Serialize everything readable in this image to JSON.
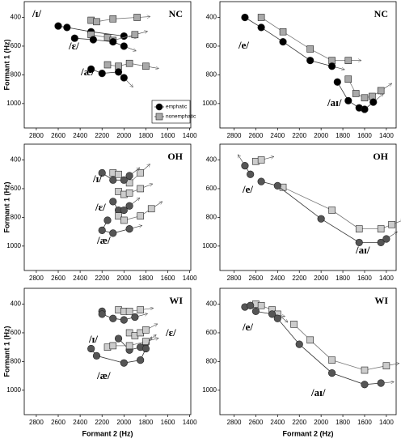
{
  "chart_data": [
    {
      "type": "trajectory",
      "title": "NC",
      "y_label": "Formant 1 (Hz)",
      "xlim": [
        2910,
        1390
      ],
      "ylim": [
        290,
        1170
      ],
      "xticks": [
        2800,
        2600,
        2400,
        2200,
        2000,
        1800,
        1600,
        1400
      ],
      "yticks": [
        400,
        600,
        800,
        1000
      ],
      "colors": {
        "emphatic": "#000000",
        "nonemphatic": "#a9a9a9"
      },
      "legend": [
        "emphatic",
        "nonemphatic"
      ],
      "trajectories": [
        {
          "label": "/ɪ/",
          "emphatic_x": [
            2600,
            2520,
            2300,
            2000
          ],
          "emphatic_y": [
            460,
            470,
            500,
            530
          ],
          "nonemphatic_x": [
            2300,
            2250,
            2100,
            1880
          ],
          "nonemphatic_y": [
            420,
            430,
            410,
            400
          ]
        },
        {
          "label": "/ɛ/",
          "emphatic_x": [
            2450,
            2280,
            2100,
            2000
          ],
          "emphatic_y": [
            545,
            555,
            570,
            600
          ],
          "nonemphatic_x": [
            2300,
            2150,
            2100,
            1900
          ],
          "nonemphatic_y": [
            520,
            540,
            560,
            520
          ]
        },
        {
          "label": "/æ/",
          "emphatic_x": [
            2300,
            2200,
            2050,
            2000
          ],
          "emphatic_y": [
            760,
            790,
            780,
            820
          ],
          "nonemphatic_x": [
            2150,
            2050,
            1950,
            1800
          ],
          "nonemphatic_y": [
            730,
            740,
            720,
            740
          ]
        }
      ]
    },
    {
      "type": "trajectory",
      "title": "NC",
      "xlim": [
        2930,
        1310
      ],
      "ylim": [
        290,
        1170
      ],
      "xticks": [
        2800,
        2600,
        2400,
        2200,
        2000,
        1800,
        1600,
        1400
      ],
      "yticks": [
        400,
        600,
        800,
        1000
      ],
      "colors": {
        "emphatic": "#000000",
        "nonemphatic": "#a9a9a9"
      },
      "trajectories": [
        {
          "label": "/e/",
          "emphatic_x": [
            2700,
            2550,
            2350,
            2100,
            1900
          ],
          "emphatic_y": [
            400,
            470,
            570,
            700,
            740
          ],
          "nonemphatic_x": [
            2550,
            2350,
            2100,
            1900,
            1750
          ],
          "nonemphatic_y": [
            400,
            500,
            620,
            700,
            700
          ]
        },
        {
          "label": "/aɪ/",
          "emphatic_x": [
            1850,
            1750,
            1650,
            1600,
            1520
          ],
          "emphatic_y": [
            850,
            980,
            1030,
            1040,
            990
          ],
          "nonemphatic_x": [
            1750,
            1680,
            1600,
            1530,
            1450
          ],
          "nonemphatic_y": [
            830,
            930,
            960,
            950,
            910
          ]
        }
      ]
    },
    {
      "type": "trajectory",
      "title": "OH",
      "y_label": "Formant 1 (Hz)",
      "xlim": [
        2910,
        1390
      ],
      "ylim": [
        290,
        1170
      ],
      "xticks": [
        2800,
        2600,
        2400,
        2200,
        2000,
        1800,
        1600,
        1400
      ],
      "yticks": [
        400,
        600,
        800,
        1000
      ],
      "colors": {
        "emphatic": "#555555",
        "nonemphatic": "#cccccc"
      },
      "trajectories": [
        {
          "label": "/ɪ/",
          "emphatic_x": [
            2200,
            2100,
            2000,
            1950
          ],
          "emphatic_y": [
            490,
            540,
            540,
            510
          ],
          "nonemphatic_x": [
            2100,
            2050,
            1950,
            1850
          ],
          "nonemphatic_y": [
            490,
            500,
            560,
            490
          ]
        },
        {
          "label": "/ɛ/",
          "emphatic_x": [
            2100,
            2050,
            2000,
            1950
          ],
          "emphatic_y": [
            690,
            750,
            750,
            720
          ],
          "nonemphatic_x": [
            2050,
            2000,
            1950,
            1850
          ],
          "nonemphatic_y": [
            620,
            640,
            630,
            600
          ]
        },
        {
          "label": "/æ/",
          "emphatic_x": [
            2150,
            2200,
            2100,
            1950
          ],
          "emphatic_y": [
            820,
            890,
            910,
            880
          ],
          "nonemphatic_x": [
            2050,
            2000,
            1850,
            1750
          ],
          "nonemphatic_y": [
            790,
            820,
            790,
            740
          ]
        }
      ]
    },
    {
      "type": "trajectory",
      "title": "OH",
      "xlim": [
        2930,
        1310
      ],
      "ylim": [
        290,
        1170
      ],
      "xticks": [
        2800,
        2600,
        2400,
        2200,
        2000,
        1800,
        1600,
        1400
      ],
      "yticks": [
        400,
        600,
        800,
        1000
      ],
      "colors": {
        "emphatic": "#555555",
        "nonemphatic": "#cccccc"
      },
      "trajectories": [
        {
          "label": "/e/",
          "emphatic_x": [
            2650,
            2700
          ],
          "emphatic_y": [
            500,
            440
          ],
          "nonemphatic_x": [
            2600,
            2550
          ],
          "nonemphatic_y": [
            410,
            400
          ]
        },
        {
          "label": "/aɪ/",
          "emphatic_x": [
            2550,
            2400,
            2000,
            1650,
            1450,
            1400
          ],
          "emphatic_y": [
            550,
            580,
            810,
            975,
            975,
            950
          ],
          "nonemphatic_x": [
            2350,
            1900,
            1650,
            1450,
            1350
          ],
          "nonemphatic_y": [
            590,
            750,
            880,
            880,
            850
          ]
        }
      ]
    },
    {
      "type": "trajectory",
      "title": "WI",
      "y_label": "Formant 1 (Hz)",
      "x_label": "Formant 2 (Hz)",
      "xlim": [
        2910,
        1390
      ],
      "ylim": [
        290,
        1170
      ],
      "xticks": [
        2800,
        2600,
        2400,
        2200,
        2000,
        1800,
        1600,
        1400
      ],
      "yticks": [
        400,
        600,
        800,
        1000
      ],
      "colors": {
        "emphatic": "#555555",
        "nonemphatic": "#cccccc"
      },
      "trajectories": [
        {
          "label": "/ɪ/",
          "emphatic_x": [
            2200,
            2200,
            2100,
            2000,
            1900
          ],
          "emphatic_y": [
            450,
            470,
            500,
            510,
            490
          ],
          "nonemphatic_x": [
            2050,
            2000,
            1950,
            1850
          ],
          "nonemphatic_y": [
            440,
            450,
            450,
            440
          ]
        },
        {
          "label": "/ɛ/",
          "emphatic_x": [
            2050,
            1950,
            1850,
            1800
          ],
          "emphatic_y": [
            640,
            720,
            700,
            670
          ],
          "nonemphatic_x": [
            1950,
            1900,
            1850,
            1800
          ],
          "nonemphatic_y": [
            600,
            620,
            600,
            580
          ]
        },
        {
          "label": "/æ/",
          "emphatic_x": [
            2300,
            2250,
            2000,
            1850,
            1800
          ],
          "emphatic_y": [
            710,
            760,
            810,
            790,
            710
          ],
          "nonemphatic_x": [
            2150,
            2100,
            1950,
            1800
          ],
          "nonemphatic_y": [
            700,
            690,
            690,
            660
          ]
        }
      ]
    },
    {
      "type": "trajectory",
      "title": "WI",
      "x_label": "Formant 2 (Hz)",
      "xlim": [
        2930,
        1310
      ],
      "ylim": [
        290,
        1170
      ],
      "xticks": [
        2800,
        2600,
        2400,
        2200,
        2000,
        1800,
        1600,
        1400
      ],
      "yticks": [
        400,
        600,
        800,
        1000
      ],
      "colors": {
        "emphatic": "#555555",
        "nonemphatic": "#cccccc"
      },
      "trajectories": [
        {
          "label": "/e/",
          "emphatic_x": [
            2700,
            2650,
            2600,
            2450
          ],
          "emphatic_y": [
            420,
            410,
            450,
            470
          ],
          "nonemphatic_x": [
            2600,
            2550,
            2450,
            2400
          ],
          "nonemphatic_y": [
            400,
            410,
            440,
            470
          ]
        },
        {
          "label": "/aɪ/",
          "emphatic_x": [
            2400,
            2200,
            1900,
            1600,
            1450
          ],
          "emphatic_y": [
            500,
            680,
            880,
            960,
            950
          ],
          "nonemphatic_x": [
            2250,
            2100,
            1900,
            1600,
            1400
          ],
          "nonemphatic_y": [
            540,
            650,
            790,
            860,
            830
          ]
        }
      ]
    }
  ]
}
